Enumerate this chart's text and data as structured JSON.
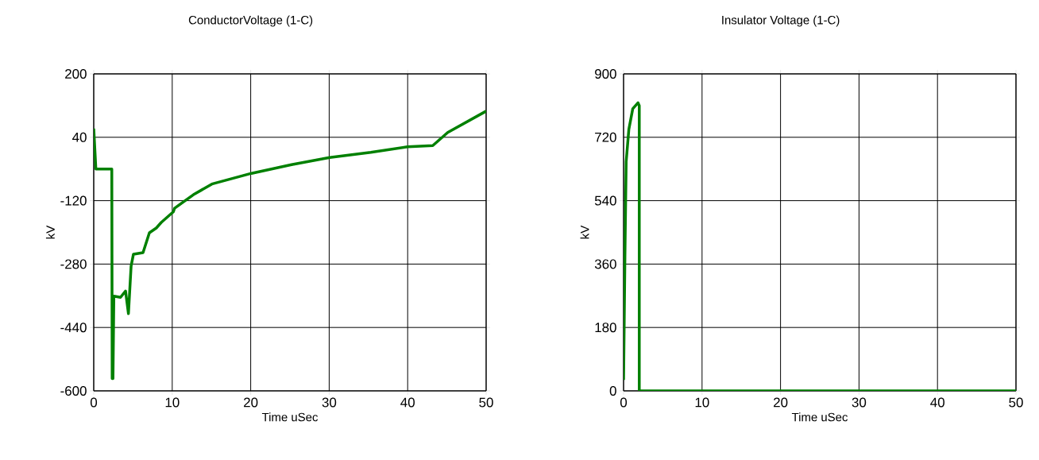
{
  "chart_data": [
    {
      "type": "line",
      "title": "ConductorVoltage (1-C)",
      "xlabel": "Time uSec",
      "ylabel": "kV",
      "xlim": [
        0,
        50
      ],
      "ylim": [
        -600,
        200
      ],
      "xticks": [
        0,
        10,
        20,
        30,
        40,
        50
      ],
      "yticks": [
        -600,
        -440,
        -280,
        -120,
        40,
        200
      ],
      "grid": true,
      "series": [
        {
          "color": "#008000",
          "x": [
            0,
            0.27,
            2.3,
            2.35,
            2.45,
            2.56,
            3.41,
            4.05,
            4.42,
            4.76,
            5.06,
            6.28,
            7.09,
            7.97,
            8.6,
            10.15,
            10.3,
            12.7,
            15.05,
            20.1,
            25.2,
            30.06,
            35.3,
            40,
            43.2,
            45.1,
            50
          ],
          "values": [
            62,
            -40,
            -40,
            -569,
            -569,
            -361,
            -364,
            -348,
            -405,
            -285,
            -255,
            -251,
            -201,
            -189,
            -175,
            -148,
            -139,
            -105,
            -78,
            -51,
            -29,
            -11,
            2,
            16,
            19,
            52,
            106
          ]
        }
      ]
    },
    {
      "type": "line",
      "title": "Insulator Voltage (1-C)",
      "xlabel": "Time uSec",
      "ylabel": "kV",
      "xlim": [
        0,
        50
      ],
      "ylim": [
        0,
        900
      ],
      "xticks": [
        0,
        10,
        20,
        30,
        40,
        50
      ],
      "yticks": [
        0,
        180,
        360,
        540,
        720,
        900
      ],
      "grid": true,
      "series": [
        {
          "color": "#008000",
          "x": [
            0,
            0.17,
            0.33,
            0.67,
            1.17,
            1.84,
            2.0,
            2.0,
            50
          ],
          "values": [
            31,
            380,
            651,
            742,
            801,
            818,
            810,
            0,
            0
          ]
        }
      ]
    }
  ]
}
